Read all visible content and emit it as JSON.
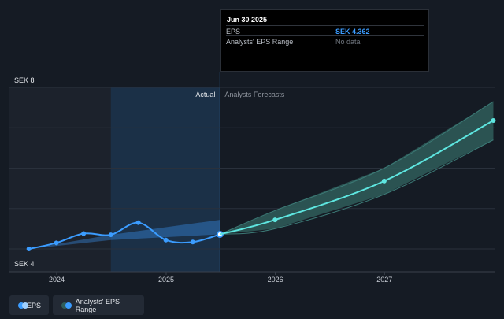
{
  "chart_data": {
    "type": "line",
    "y_axis": {
      "min_label": "SEK 4",
      "max_label": "SEK 8",
      "range": [
        4,
        8
      ]
    },
    "x_ticks": [
      "2024",
      "2025",
      "2026",
      "2027"
    ],
    "region_labels": {
      "actual": "Actual",
      "forecast": "Analysts Forecasts"
    },
    "series": [
      {
        "name": "EPS",
        "color": "#3b9cff",
        "points": [
          {
            "x": "2023-09-30",
            "y": 4.0
          },
          {
            "x": "2023-12-31",
            "y": 4.15
          },
          {
            "x": "2024-03-31",
            "y": 4.38
          },
          {
            "x": "2024-06-30",
            "y": 4.35
          },
          {
            "x": "2024-09-30",
            "y": 4.65
          },
          {
            "x": "2024-12-31",
            "y": 4.22
          },
          {
            "x": "2025-03-31",
            "y": 4.17
          },
          {
            "x": "2025-06-30",
            "y": 4.362
          }
        ]
      },
      {
        "name": "EPS Forecast",
        "color": "#5ee6e0",
        "points": [
          {
            "x": "2025-06-30",
            "y": 4.362
          },
          {
            "x": "2025-12-31",
            "y": 4.72
          },
          {
            "x": "2026-12-31",
            "y": 5.68
          },
          {
            "x": "2027-12-31",
            "y": 7.18
          }
        ]
      }
    ],
    "actual_range": {
      "color": "#3b9cff",
      "points": [
        {
          "x": "2023-09-30",
          "lo": 4.0,
          "hi": 4.0
        },
        {
          "x": "2024-06-30",
          "lo": 4.22,
          "hi": 4.35
        },
        {
          "x": "2025-06-30",
          "lo": 4.362,
          "hi": 4.72
        }
      ]
    },
    "forecast_range": {
      "color": "#2f5d5a",
      "points": [
        {
          "x": "2025-06-30",
          "lo": 4.362,
          "hi": 4.362
        },
        {
          "x": "2025-12-31",
          "lo": 4.5,
          "hi": 4.95
        },
        {
          "x": "2026-12-31",
          "lo": 5.35,
          "hi": 6.0
        },
        {
          "x": "2027-12-31",
          "lo": 6.7,
          "hi": 7.65
        }
      ]
    }
  },
  "tooltip": {
    "date": "Jun 30 2025",
    "rows": [
      {
        "label": "EPS",
        "value": "SEK 4.362"
      },
      {
        "label": "Analysts' EPS Range",
        "value": "No data"
      }
    ]
  },
  "legend": [
    {
      "label": "EPS",
      "color_a": "#3b9cff",
      "color_b": "#9fd0ff"
    },
    {
      "label": "Analysts' EPS Range",
      "color_a": "#2f5d5a",
      "color_b": "#3b9cff"
    }
  ]
}
